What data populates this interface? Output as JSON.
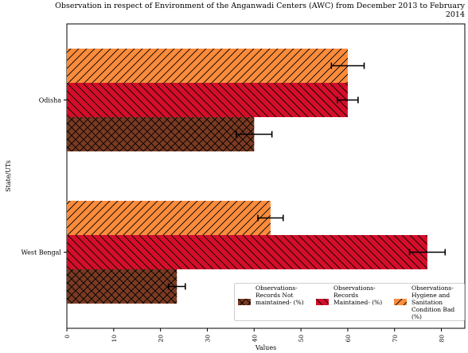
{
  "chart_data": {
    "type": "bar",
    "orientation": "horizontal",
    "title": "Observation in respect of Environment of the Anganwadi Centers (AWC) from December 2013 to February 2014",
    "xlabel": "Values",
    "ylabel": "State/UTs",
    "categories": [
      "Odisha",
      "West Bengal"
    ],
    "xlim": [
      0,
      85
    ],
    "xticks": [
      0,
      10,
      20,
      30,
      40,
      50,
      60,
      70,
      80
    ],
    "grid": false,
    "legend_position": "lower-right",
    "series": [
      {
        "name": "Observations-Records Not maintained- (%)",
        "color": "#7b3a22",
        "hatch": "cross",
        "values": [
          40,
          23.5
        ],
        "errors": [
          3.8,
          1.8
        ]
      },
      {
        "name": "Observations-Records Maintained- (%)",
        "color": "#d40e2a",
        "hatch": "back-diagonal",
        "values": [
          60,
          77
        ],
        "errors": [
          2.2,
          3.8
        ]
      },
      {
        "name": "Observations-Hygiene and Sanitation Condition Bad (%)",
        "color": "#fb8c3c",
        "hatch": "forward-diagonal",
        "values": [
          60,
          43.5
        ],
        "errors": [
          3.5,
          2.7
        ]
      }
    ]
  }
}
